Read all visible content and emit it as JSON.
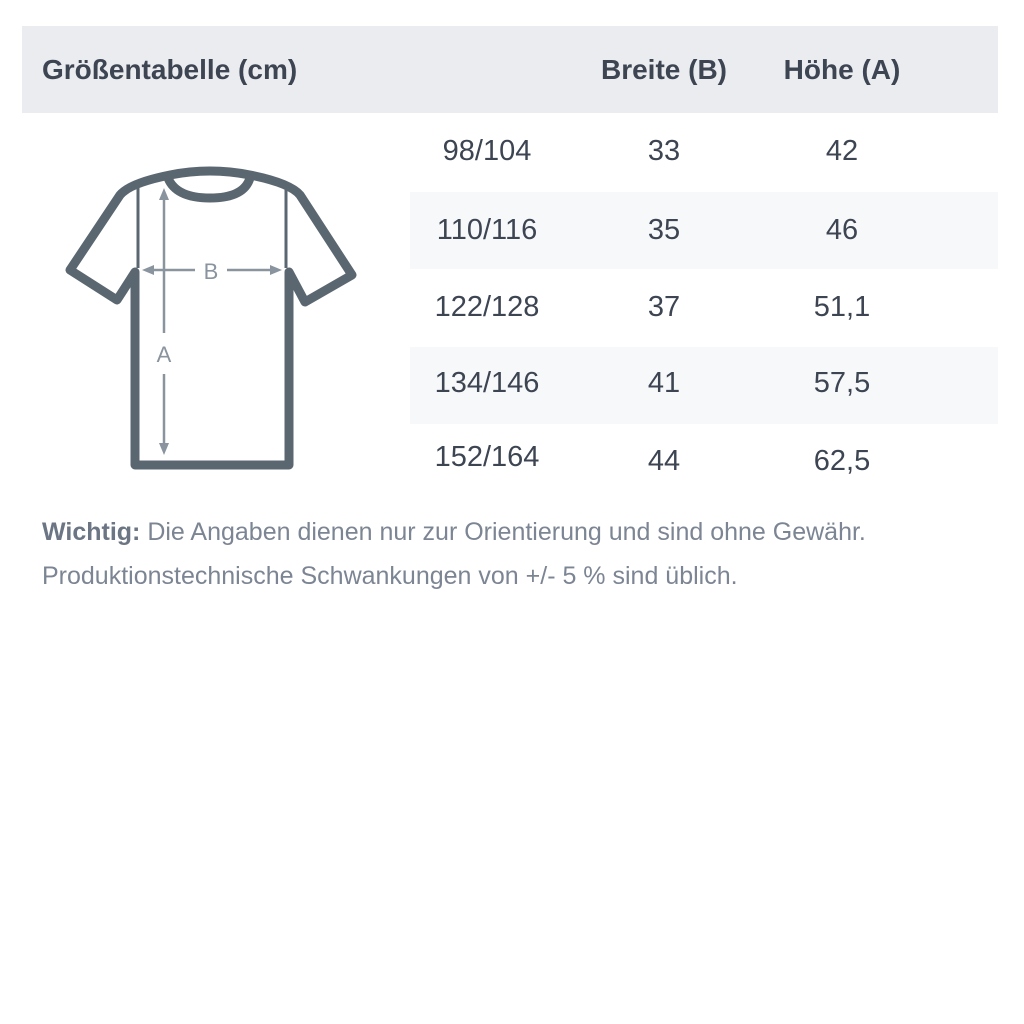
{
  "header": {
    "title": "Größentabelle (cm)",
    "col_width": "Breite (B)",
    "col_height": "Höhe (A)"
  },
  "diagram": {
    "label_width": "B",
    "label_height": "A",
    "stroke_color": "#5b6770",
    "arrow_color": "#8a949e"
  },
  "rows": [
    {
      "size": "98/104",
      "width": "33",
      "height": "42"
    },
    {
      "size": "110/116",
      "width": "35",
      "height": "46"
    },
    {
      "size": "122/128",
      "width": "37",
      "height": "51,1"
    },
    {
      "size": "134/146",
      "width": "41",
      "height": "57,5"
    },
    {
      "size": "152/164",
      "width": "44",
      "height": "62,5"
    }
  ],
  "note": {
    "label": "Wichtig:",
    "line1": " Die Angaben dienen nur zur Orientierung und sind ohne Gewähr.",
    "line2": "Produktionstechnische Schwankungen von +/- 5 % sind üblich."
  }
}
